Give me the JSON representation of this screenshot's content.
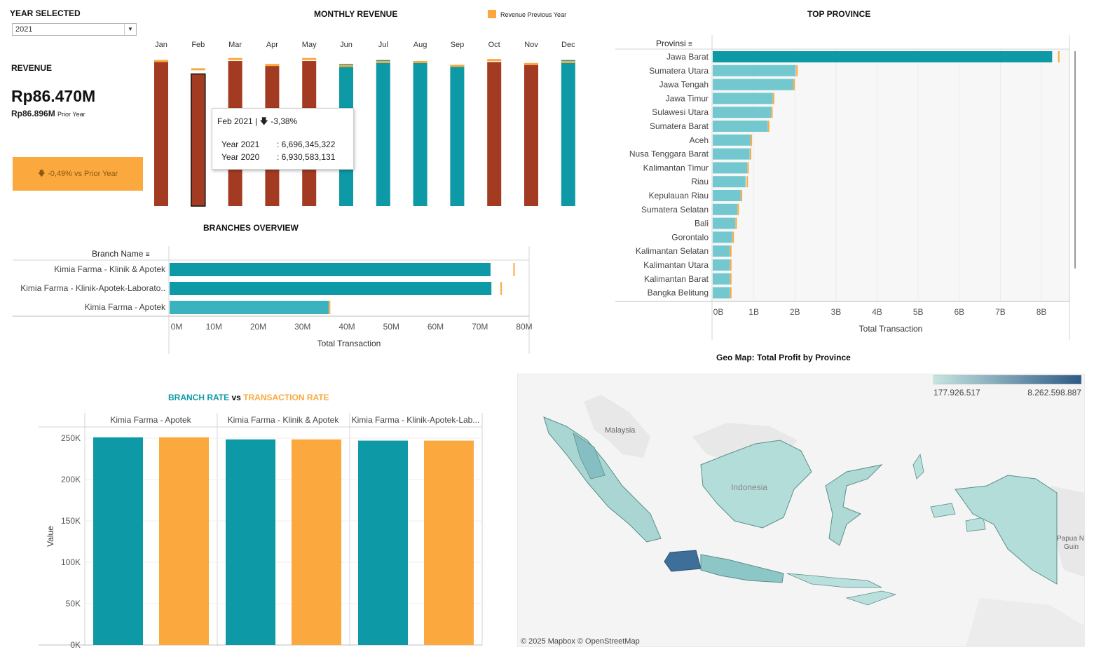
{
  "filter": {
    "label": "YEAR SELECTED",
    "value": "2021"
  },
  "revenue": {
    "label": "REVENUE",
    "value": "Rp86.470M",
    "prior_value": "Rp86.896M",
    "prior_suffix": "Prior Year",
    "delta_icon": "arrow-down-icon",
    "delta_text": "-0,49% vs Prior Year"
  },
  "monthly": {
    "title": "MONTHLY REVENUE",
    "legend_label": "Revenue Previous Year"
  },
  "tooltip": {
    "header": "Feb 2021 |",
    "change": "-3,38%",
    "row1_label": "Year 2021",
    "row1_value": ": 6,696,345,322",
    "row2_label": "Year 2020",
    "row2_value": ": 6,930,583,131"
  },
  "branches": {
    "title": "BRANCHES OVERVIEW",
    "dim_label": "Branch Name"
  },
  "rates": {
    "title_part1": "BRANCH RATE",
    "title_vs": "vs",
    "title_part2": "TRANSACTION RATE"
  },
  "top_province": {
    "title": "TOP PROVINCE",
    "dim_label": "Provinsi"
  },
  "geomap": {
    "title": "Geo Map: Total Profit by Province",
    "legend_min": "177.926.517",
    "legend_max": "8.262.598.887",
    "labels": [
      "Malaysia",
      "Indonesia",
      "Papua N",
      "Guin"
    ],
    "attribution": "© 2025 Mapbox © OpenStreetMap"
  },
  "colors": {
    "teal": "#0D99A5",
    "rust": "#A23B21",
    "orange": "#FBA93E",
    "light_teal": "#73C8D0",
    "mid_teal": "#3AB3BE"
  },
  "chart_data": [
    {
      "type": "bar",
      "title": "MONTHLY REVENUE",
      "categories": [
        "Jan",
        "Feb",
        "Mar",
        "Apr",
        "May",
        "Jun",
        "Jul",
        "Aug",
        "Sep",
        "Oct",
        "Nov",
        "Dec"
      ],
      "series": [
        {
          "name": "Revenue",
          "values": [
            7.3,
            6.696,
            7.35,
            7.1,
            7.35,
            7.2,
            7.4,
            7.35,
            7.15,
            7.3,
            7.15,
            7.4
          ],
          "status": [
            "down",
            "down",
            "down",
            "down",
            "down",
            "up",
            "up",
            "up",
            "up",
            "down",
            "down",
            "up"
          ]
        },
        {
          "name": "Revenue Previous Year",
          "values": [
            7.35,
            6.931,
            7.45,
            7.15,
            7.45,
            7.1,
            7.3,
            7.3,
            7.1,
            7.4,
            7.2,
            7.3
          ]
        }
      ],
      "unit": "B (Rp)",
      "ylim": [
        0,
        7.6
      ]
    },
    {
      "type": "bar",
      "title": "BRANCHES OVERVIEW",
      "orientation": "horizontal",
      "categories": [
        "Kimia Farma - Klinik & Apotek",
        "Kimia Farma - Klinik-Apotek-Laborato..",
        "Kimia Farma - Apotek"
      ],
      "series": [
        {
          "name": "Total Transaction",
          "values": [
            72.4,
            72.6,
            35.9
          ]
        },
        {
          "name": "Previous Year",
          "values": [
            77.7,
            74.8,
            36.1
          ]
        }
      ],
      "xlabel": "Total Transaction",
      "ticks": [
        "0M",
        "10M",
        "20M",
        "30M",
        "40M",
        "50M",
        "60M",
        "70M",
        "80M"
      ],
      "xlim": [
        0,
        80
      ]
    },
    {
      "type": "bar",
      "title": "TOP PROVINCE",
      "orientation": "horizontal",
      "categories": [
        "Jawa Barat",
        "Sumatera Utara",
        "Jawa Tengah",
        "Jawa Timur",
        "Sulawesi Utara",
        "Sumatera Barat",
        "Aceh",
        "Nusa Tenggara Barat",
        "Kalimantan Timur",
        "Riau",
        "Kepulauan Riau",
        "Sumatera Selatan",
        "Bali",
        "Gorontalo",
        "Kalimantan Selatan",
        "Kalimantan Utara",
        "Kalimantan Barat",
        "Bangka Belitung"
      ],
      "series": [
        {
          "name": "Total Transaction",
          "values": [
            8.26,
            2.02,
            1.96,
            1.46,
            1.42,
            1.34,
            0.92,
            0.9,
            0.84,
            0.8,
            0.68,
            0.6,
            0.55,
            0.48,
            0.42,
            0.42,
            0.42,
            0.42
          ]
        },
        {
          "name": "Previous Year",
          "values": [
            8.42,
            2.05,
            1.98,
            1.48,
            1.44,
            1.36,
            0.94,
            0.92,
            0.86,
            0.84,
            0.7,
            0.62,
            0.57,
            0.5,
            0.44,
            0.44,
            0.44,
            0.44
          ]
        }
      ],
      "xlabel": "Total Transaction",
      "ticks": [
        "0B",
        "1B",
        "2B",
        "3B",
        "4B",
        "5B",
        "6B",
        "7B",
        "8B"
      ],
      "xlim": [
        0,
        8.8
      ]
    },
    {
      "type": "bar",
      "title": "BRANCH RATE vs TRANSACTION RATE",
      "categories": [
        "Kimia Farma - Apotek",
        "Kimia Farma - Klinik & Apotek",
        "Kimia Farma - Klinik-Apotek-Lab..."
      ],
      "series": [
        {
          "name": "BRANCH RATE",
          "values": [
            251000,
            248500,
            247000
          ]
        },
        {
          "name": "TRANSACTION RATE",
          "values": [
            251000,
            248500,
            247000
          ]
        }
      ],
      "ylabel": "Value",
      "ticks": [
        "250K",
        "200K",
        "150K",
        "100K",
        "50K",
        "0K"
      ],
      "ylim": [
        0,
        250000
      ]
    }
  ]
}
